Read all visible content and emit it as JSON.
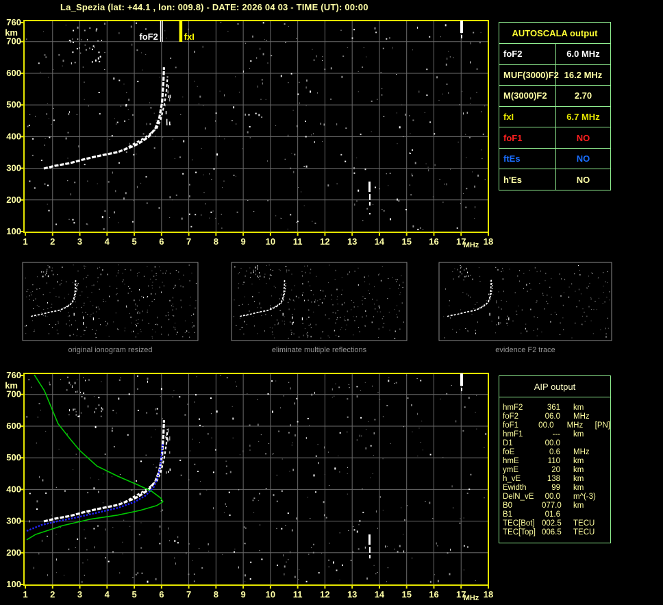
{
  "title": "La_Spezia (lat: +44.1 , lon: 009.8) - DATE: 2026 04 03 - TIME (UT): 00:00",
  "colors": {
    "background": "#000000",
    "pale_yellow": "#ffffa6",
    "bright_yellow": "#ffff33",
    "chart_border": "#e6e600",
    "grid": "#6b6b6b",
    "table_border": "#90ee90",
    "red": "#ff2020",
    "blue_es": "#1a6eff",
    "trace_white": "#ffffff",
    "profile_green": "#00c800",
    "autoscaled_blue": "#2222ff",
    "panel_border": "#8c8c8c",
    "caption_gray": "#969696"
  },
  "axes": {
    "x_unit": "MHz",
    "y_unit": "km",
    "x_ticks": [
      1,
      2,
      3,
      4,
      5,
      6,
      7,
      8,
      9,
      10,
      11,
      12,
      13,
      14,
      15,
      16,
      17,
      18
    ],
    "y_ticks": [
      760,
      700,
      600,
      500,
      400,
      300,
      200,
      100
    ],
    "x_range": [
      1,
      18
    ],
    "y_range": [
      100,
      760
    ]
  },
  "top_chart": {
    "markers": {
      "foF2": {
        "label": "foF2",
        "freq": 6.0,
        "color": "#ffffff"
      },
      "fxI": {
        "label": "fxI",
        "freq": 6.7,
        "color": "#ffff00"
      }
    }
  },
  "panels": [
    {
      "caption": "original ionogram resized"
    },
    {
      "caption": "eliminate multiple reflections"
    },
    {
      "caption": "evidence F2 trace"
    }
  ],
  "autoscala": {
    "header": "AUTOSCALA output",
    "rows": [
      {
        "label": "foF2",
        "value": "6.0 MHz",
        "color": "#ffffff"
      },
      {
        "label": "MUF(3000)F2",
        "value": "16.2 MHz",
        "color": "#ffffa6"
      },
      {
        "label": "M(3000)F2",
        "value": "2.70",
        "color": "#ffffa6"
      },
      {
        "label": "fxI",
        "value": "6.7 MHz",
        "color": "#e8e800"
      },
      {
        "label": "foF1",
        "value": "NO",
        "color": "#ff2020"
      },
      {
        "label": "ftEs",
        "value": "NO",
        "color": "#1a6eff"
      },
      {
        "label": "h'Es",
        "value": "NO",
        "color": "#ffffa6"
      }
    ]
  },
  "aip": {
    "header": "AIP output",
    "rows": [
      {
        "label": "hmF2",
        "value": "361",
        "unit": "km",
        "note": ""
      },
      {
        "label": "foF2",
        "value": "06.0",
        "unit": "MHz",
        "note": ""
      },
      {
        "label": "foF1",
        "value": "00.0",
        "unit": "MHz",
        "note": "[PN]"
      },
      {
        "label": "hmF1",
        "value": "---",
        "unit": "km",
        "note": ""
      },
      {
        "label": "D1",
        "value": "00.0",
        "unit": "",
        "note": ""
      },
      {
        "label": "foE",
        "value": "0.6",
        "unit": "MHz",
        "note": ""
      },
      {
        "label": "hmE",
        "value": "110",
        "unit": "km",
        "note": ""
      },
      {
        "label": "ymE",
        "value": "20",
        "unit": "km",
        "note": ""
      },
      {
        "label": "h_vE",
        "value": "138",
        "unit": "km",
        "note": ""
      },
      {
        "label": "Ewidth",
        "value": "99",
        "unit": "km",
        "note": ""
      },
      {
        "label": "DelN_vE",
        "value": "00.0",
        "unit": "m^(-3)",
        "note": ""
      },
      {
        "label": "B0",
        "value": "077.0",
        "unit": "km",
        "note": ""
      },
      {
        "label": "B1",
        "value": "01.6",
        "unit": "",
        "note": ""
      },
      {
        "label": "TEC[Bot]",
        "value": "002.5",
        "unit": "TECU",
        "note": ""
      },
      {
        "label": "TEC[Top]",
        "value": "006.5",
        "unit": "TECU",
        "note": ""
      }
    ]
  },
  "chart_data": [
    {
      "type": "scatter",
      "title": "ionogram with AUTOSCALA markers (top chart)",
      "xlabel": "MHz",
      "ylabel": "km",
      "xlim": [
        1,
        18
      ],
      "ylim": [
        100,
        760
      ],
      "grid": true,
      "series": [
        {
          "name": "F2 ordinary trace",
          "x": [
            1.68,
            2.1,
            2.63,
            3.1,
            3.64,
            4.39,
            4.9,
            5.14,
            5.52,
            5.77,
            5.92,
            6.02,
            6.07,
            6.09
          ],
          "y": [
            299,
            308,
            316,
            327,
            338,
            351,
            368,
            377,
            399,
            425,
            459,
            507,
            572,
            619
          ]
        },
        {
          "name": "F2 extraordinary trace",
          "x": [
            4.64,
            5.0,
            5.39,
            5.82,
            5.97,
            6.1,
            6.18,
            6.22
          ],
          "y": [
            360,
            378,
            397,
            425,
            453,
            500,
            545,
            590
          ]
        }
      ],
      "markers": [
        {
          "name": "foF2",
          "x": 6.0
        },
        {
          "name": "fxI",
          "x": 6.7
        }
      ],
      "annotations": [
        {
          "name": "interference streak",
          "x": 12.65,
          "y_span": [
            190,
            258
          ]
        },
        {
          "name": "interference streak",
          "x": 17.05,
          "y_span": [
            720,
            760
          ]
        },
        {
          "name": "noise cluster",
          "x_span": [
            2.7,
            3.8
          ],
          "y_span": [
            635,
            750
          ]
        }
      ]
    },
    {
      "type": "scatter",
      "title": "ionogram with AIP inversion (bottom chart)",
      "xlabel": "MHz",
      "ylabel": "km",
      "xlim": [
        1,
        18
      ],
      "ylim": [
        100,
        760
      ],
      "grid": true,
      "series": [
        {
          "name": "F2 ordinary trace",
          "x": [
            1.68,
            2.1,
            2.63,
            3.1,
            3.64,
            4.39,
            4.9,
            5.14,
            5.52,
            5.77,
            5.92,
            6.02,
            6.07,
            6.09
          ],
          "y": [
            299,
            308,
            316,
            327,
            338,
            351,
            368,
            377,
            399,
            425,
            459,
            507,
            572,
            619
          ]
        },
        {
          "name": "F2 extraordinary trace",
          "x": [
            4.64,
            5.0,
            5.39,
            5.82,
            5.97,
            6.1,
            6.18,
            6.22
          ],
          "y": [
            360,
            378,
            397,
            425,
            453,
            500,
            545,
            590
          ]
        },
        {
          "name": "autoscaled trace (blue)",
          "x": [
            1.05,
            1.6,
            2.2,
            2.9,
            3.6,
            4.4,
            5.0,
            5.4,
            5.7,
            5.85,
            5.95,
            6.0,
            6.05
          ],
          "y": [
            269,
            288,
            300,
            312,
            326,
            342,
            360,
            380,
            405,
            435,
            470,
            510,
            545
          ]
        },
        {
          "name": "electron density profile (green)",
          "x": [
            1.33,
            1.7,
            2.2,
            2.63,
            3.01,
            3.63,
            4.39,
            5.14,
            5.64,
            5.97,
            6.05,
            5.82,
            5.22,
            4.39,
            3.38,
            2.38,
            1.38,
            1.05
          ],
          "y": [
            762,
            712,
            608,
            561,
            522,
            474,
            442,
            414,
            394,
            373,
            361,
            349,
            334,
            319,
            306,
            286,
            258,
            241
          ]
        }
      ],
      "annotations": [
        {
          "name": "interference streak",
          "x": 12.65,
          "y_span": [
            190,
            258
          ]
        },
        {
          "name": "interference streak",
          "x": 17.05,
          "y_span": [
            720,
            760
          ]
        },
        {
          "name": "noise cluster",
          "x_span": [
            2.7,
            3.8
          ],
          "y_span": [
            635,
            750
          ]
        }
      ]
    }
  ]
}
